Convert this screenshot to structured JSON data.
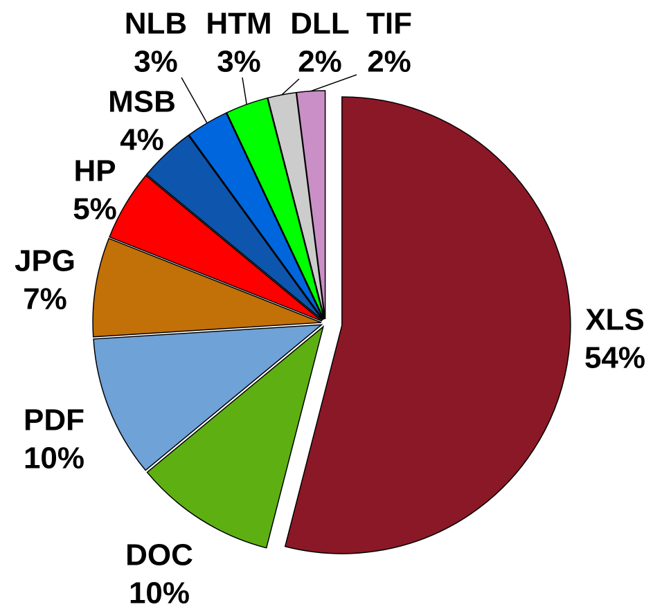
{
  "chart_data": {
    "type": "pie",
    "categories": [
      "XLS",
      "DOC",
      "PDF",
      "JPG",
      "HP",
      "MSB",
      "NLB",
      "HTM",
      "DLL",
      "TIF"
    ],
    "values": [
      54,
      10,
      10,
      7,
      5,
      4,
      3,
      3,
      2,
      2
    ],
    "value_labels": [
      "54%",
      "10%",
      "10%",
      "7%",
      "5%",
      "4%",
      "3%",
      "3%",
      "2%",
      "2%"
    ],
    "colors": [
      "#8b1827",
      "#5eb012",
      "#6fa2d6",
      "#c27008",
      "#ff0000",
      "#0d55ad",
      "#0066dd",
      "#00ff00",
      "#cccccc",
      "#c98fc6"
    ]
  }
}
